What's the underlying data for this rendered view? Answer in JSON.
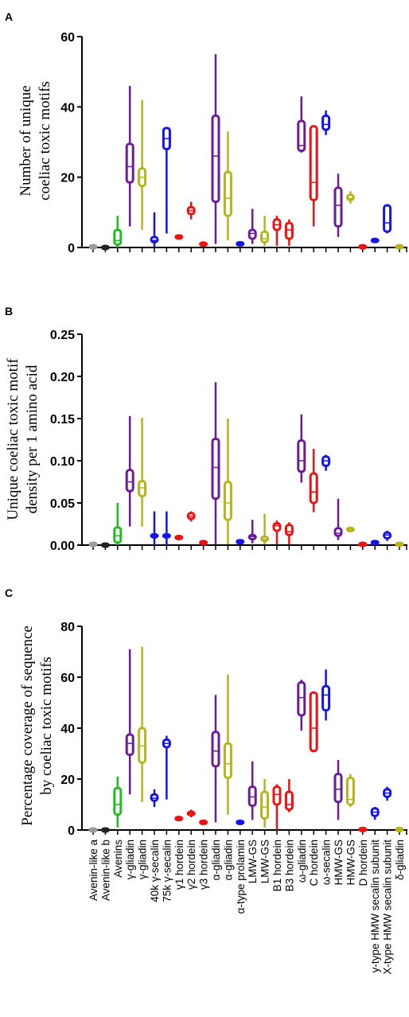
{
  "colors": {
    "gray": "#9a9a9a",
    "black": "#222222",
    "green": "#22bb22",
    "purple": "#6a1b9a",
    "olive": "#b5b519",
    "blue": "#1414e6",
    "red": "#ee1111"
  },
  "categories": [
    {
      "label": "Avenin-like a",
      "color": "gray"
    },
    {
      "label": "Avenin-like b",
      "color": "black"
    },
    {
      "label": "Avenins",
      "color": "green"
    },
    {
      "label": "γ-gliadin",
      "color": "purple"
    },
    {
      "label": "γ-gliadin",
      "color": "olive"
    },
    {
      "label": "40k γ-secalin",
      "color": "blue"
    },
    {
      "label": "75k γ-secalin",
      "color": "blue"
    },
    {
      "label": "γ1 hordein",
      "color": "red"
    },
    {
      "label": "γ2 hordein",
      "color": "red"
    },
    {
      "label": "γ3 hordein",
      "color": "red"
    },
    {
      "label": "α-gliadin",
      "color": "purple"
    },
    {
      "label": "α-gliadin",
      "color": "olive"
    },
    {
      "label": "α-type prolamin",
      "color": "blue"
    },
    {
      "label": "LMW-GS",
      "color": "purple"
    },
    {
      "label": "LMW-GS",
      "color": "olive"
    },
    {
      "label": "B1 hordein",
      "color": "red"
    },
    {
      "label": "B3 hordein",
      "color": "red"
    },
    {
      "label": "ω-gliadin",
      "color": "purple"
    },
    {
      "label": "C hordein",
      "color": "red"
    },
    {
      "label": "ω-secalin",
      "color": "blue"
    },
    {
      "label": "HMW-GS",
      "color": "purple"
    },
    {
      "label": "HMW-GS",
      "color": "olive"
    },
    {
      "label": "D hordein",
      "color": "red"
    },
    {
      "label": "y-type HMW secalin subunit",
      "color": "blue"
    },
    {
      "label": "X-type HMW secalin subunit",
      "color": "blue"
    },
    {
      "label": "δ-gliadin",
      "color": "olive"
    }
  ],
  "chart_data": [
    {
      "type": "box",
      "panel": "A",
      "ylabel": [
        "Number of unique",
        "coeliac toxic motifs"
      ],
      "ylim": [
        0,
        60
      ],
      "yticks": [
        "0",
        "20",
        "40",
        "60"
      ],
      "series_stats_order": [
        "min",
        "q1",
        "median",
        "q3",
        "max"
      ],
      "values": [
        [
          0.2,
          0.2,
          0.2,
          0.2,
          0.3
        ],
        [
          0,
          0,
          0,
          0,
          0
        ],
        [
          0,
          0.8,
          2,
          5,
          9
        ],
        [
          6,
          18.5,
          23,
          29.5,
          46
        ],
        [
          5,
          17.5,
          20,
          22.5,
          42
        ],
        [
          0,
          1.5,
          2,
          3,
          10
        ],
        [
          4,
          28,
          31,
          34,
          34
        ],
        [
          2.5,
          2.8,
          3,
          3.2,
          3.5
        ],
        [
          8,
          9.5,
          10.5,
          11.5,
          13
        ],
        [
          0.5,
          0.7,
          1,
          1.2,
          1.5
        ],
        [
          1,
          13,
          26,
          37.5,
          55
        ],
        [
          2,
          9,
          14,
          21.5,
          33
        ],
        [
          0.5,
          0.8,
          1,
          1.3,
          1.6
        ],
        [
          1,
          2.5,
          4,
          5,
          11
        ],
        [
          0.5,
          1.5,
          2.5,
          4.5,
          9
        ],
        [
          0.5,
          5,
          6.5,
          8,
          9
        ],
        [
          0.5,
          2.5,
          5,
          7,
          8
        ],
        [
          27,
          27.5,
          29,
          36,
          43
        ],
        [
          6,
          13.5,
          18.5,
          34.5,
          34.5
        ],
        [
          32,
          33.5,
          35,
          37.5,
          39
        ],
        [
          3,
          6,
          12,
          17,
          21
        ],
        [
          12.5,
          13.5,
          14,
          15,
          16
        ],
        [
          0,
          0.1,
          0.2,
          0.3,
          0.4
        ],
        [
          1.5,
          1.8,
          2,
          2.2,
          2.4
        ],
        [
          4,
          4.5,
          7,
          12,
          12
        ],
        [
          0,
          0.1,
          0.2,
          0.3,
          0.5
        ]
      ]
    },
    {
      "type": "box",
      "panel": "B",
      "ylabel": [
        "Unique coeliac toxic motif",
        "density per 1 amino acid"
      ],
      "ylim": [
        0,
        0.25
      ],
      "yticks": [
        "0.00",
        "0.05",
        "0.10",
        "0.15",
        "0.20",
        "0.25"
      ],
      "series_stats_order": [
        "min",
        "q1",
        "median",
        "q3",
        "max"
      ],
      "values": [
        [
          0.001,
          0.001,
          0.001,
          0.001,
          0.001
        ],
        [
          0,
          0,
          0,
          0,
          0
        ],
        [
          0,
          0.003,
          0.011,
          0.021,
          0.05
        ],
        [
          0.022,
          0.064,
          0.075,
          0.089,
          0.153
        ],
        [
          0.022,
          0.058,
          0.068,
          0.076,
          0.151
        ],
        [
          0,
          0.01,
          0.011,
          0.012,
          0.04
        ],
        [
          0,
          0.01,
          0.011,
          0.012,
          0.04
        ],
        [
          0.007,
          0.008,
          0.009,
          0.01,
          0.011
        ],
        [
          0.028,
          0.031,
          0.034,
          0.038,
          0.04
        ],
        [
          0.001,
          0.002,
          0.003,
          0.004,
          0.005
        ],
        [
          0.001,
          0.055,
          0.092,
          0.126,
          0.193
        ],
        [
          0.001,
          0.03,
          0.05,
          0.075,
          0.15
        ],
        [
          0.002,
          0.003,
          0.004,
          0.005,
          0.006
        ],
        [
          0.002,
          0.007,
          0.01,
          0.012,
          0.03
        ],
        [
          0.001,
          0.005,
          0.007,
          0.01,
          0.037
        ],
        [
          0.001,
          0.017,
          0.023,
          0.026,
          0.029
        ],
        [
          0.001,
          0.012,
          0.016,
          0.024,
          0.027
        ],
        [
          0.074,
          0.087,
          0.1,
          0.124,
          0.155
        ],
        [
          0.039,
          0.05,
          0.063,
          0.085,
          0.114
        ],
        [
          0.088,
          0.094,
          0.1,
          0.105,
          0.107
        ],
        [
          0.006,
          0.011,
          0.014,
          0.02,
          0.055
        ],
        [
          0.016,
          0.017,
          0.019,
          0.02,
          0.021
        ],
        [
          0,
          0.0005,
          0.001,
          0.0015,
          0.002
        ],
        [
          0.001,
          0.002,
          0.003,
          0.004,
          0.005
        ],
        [
          0.005,
          0.008,
          0.012,
          0.015,
          0.017
        ],
        [
          0,
          0.0005,
          0.001,
          0.0015,
          0.002
        ]
      ]
    },
    {
      "type": "box",
      "panel": "C",
      "ylabel": [
        "Percentage coverage of sequence",
        "by coeliac toxic motifs"
      ],
      "ylim": [
        0,
        80
      ],
      "yticks": [
        "0",
        "20",
        "40",
        "60",
        "80"
      ],
      "series_stats_order": [
        "min",
        "q1",
        "median",
        "q3",
        "max"
      ],
      "values": [
        [
          0,
          0,
          0,
          0,
          0
        ],
        [
          0,
          0,
          0,
          0,
          0
        ],
        [
          1,
          6,
          10,
          16.5,
          21
        ],
        [
          14,
          29.5,
          34,
          37.5,
          71
        ],
        [
          11,
          26.5,
          33,
          40,
          72
        ],
        [
          9,
          11.5,
          12.5,
          14,
          16
        ],
        [
          12,
          32.5,
          34,
          35.5,
          37
        ],
        [
          3.5,
          4,
          4.5,
          5,
          5.5
        ],
        [
          5,
          5.8,
          6.5,
          7.2,
          8
        ],
        [
          2.5,
          2.8,
          3,
          3.2,
          3.5
        ],
        [
          3,
          25,
          31,
          38.5,
          53
        ],
        [
          6,
          20.5,
          26,
          34,
          61
        ],
        [
          2.5,
          2.8,
          3,
          3.2,
          3.5
        ],
        [
          4,
          9.5,
          13,
          17,
          27
        ],
        [
          1,
          4.5,
          9,
          15,
          20
        ],
        [
          0,
          10,
          14,
          17,
          18
        ],
        [
          7,
          8,
          10,
          15,
          20
        ],
        [
          39,
          45,
          52,
          58,
          59
        ],
        [
          31,
          31,
          40,
          54,
          54
        ],
        [
          43,
          47,
          53,
          56.5,
          63
        ],
        [
          4,
          11,
          16,
          22,
          27.5
        ],
        [
          9,
          10,
          12,
          20.5,
          22
        ],
        [
          0,
          0.1,
          0.2,
          0.3,
          0.5
        ],
        [
          4,
          5.5,
          7,
          8.5,
          9
        ],
        [
          11.5,
          13,
          14.5,
          16,
          17
        ],
        [
          0,
          0.1,
          0.2,
          0.3,
          0.4
        ]
      ]
    }
  ]
}
